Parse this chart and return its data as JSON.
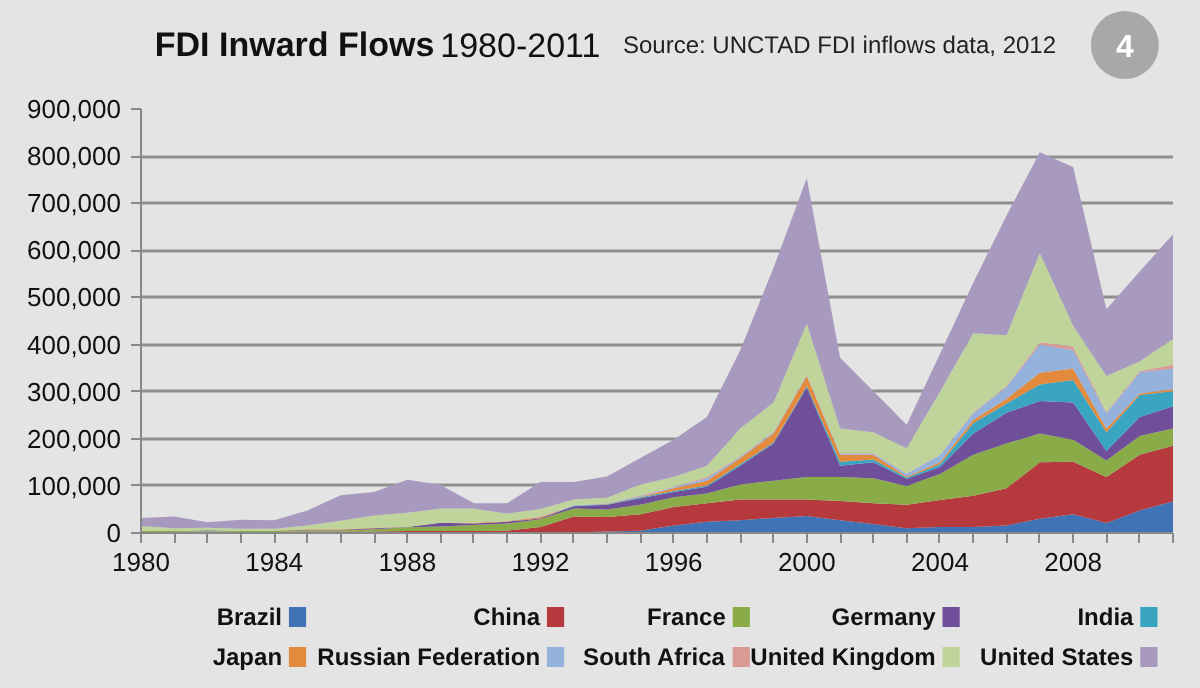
{
  "chart_data": {
    "type": "area",
    "stacked": true,
    "title": "FDI Inward Flows",
    "subtitle": "1980-2011",
    "annotations": [
      "Source: UNCTAD FDI inflows data, 2012",
      "4"
    ],
    "x": [
      1980,
      1981,
      1982,
      1983,
      1984,
      1985,
      1986,
      1987,
      1988,
      1989,
      1990,
      1991,
      1992,
      1993,
      1994,
      1995,
      1996,
      1997,
      1998,
      1999,
      2000,
      2001,
      2002,
      2003,
      2004,
      2005,
      2006,
      2007,
      2008,
      2009,
      2010,
      2011
    ],
    "xlim": [
      1980,
      2011
    ],
    "xticks": [
      1980,
      {
        "value": 1981,
        "label": null
      },
      {
        "value": 1982,
        "label": null
      },
      {
        "value": 1983,
        "label": null
      },
      1984,
      {
        "value": 1985,
        "label": null
      },
      {
        "value": 1986,
        "label": null
      },
      {
        "value": 1987,
        "label": null
      },
      1988,
      {
        "value": 1989,
        "label": null
      },
      {
        "value": 1990,
        "label": null
      },
      {
        "value": 1991,
        "label": null
      },
      1992,
      {
        "value": 1993,
        "label": null
      },
      {
        "value": 1994,
        "label": null
      },
      {
        "value": 1995,
        "label": null
      },
      1996,
      {
        "value": 1997,
        "label": null
      },
      {
        "value": 1998,
        "label": null
      },
      {
        "value": 1999,
        "label": null
      },
      2000,
      {
        "value": 2001,
        "label": null
      },
      {
        "value": 2002,
        "label": null
      },
      {
        "value": 2003,
        "label": null
      },
      2004,
      {
        "value": 2005,
        "label": null
      },
      {
        "value": 2006,
        "label": null
      },
      {
        "value": 2007,
        "label": null
      },
      2008,
      {
        "value": 2009,
        "label": null
      },
      {
        "value": 2010,
        "label": null
      },
      {
        "value": 2011,
        "label": null
      }
    ],
    "ylim": [
      0,
      900000
    ],
    "yticks": [
      {
        "value": 0,
        "label": "0"
      },
      {
        "value": 100000,
        "label": "100,000"
      },
      {
        "value": 200000,
        "label": "200,000"
      },
      {
        "value": 300000,
        "label": "300,000"
      },
      {
        "value": 400000,
        "label": "400,000"
      },
      {
        "value": 500000,
        "label": "500,000"
      },
      {
        "value": 600000,
        "label": "600,000"
      },
      {
        "value": 700000,
        "label": "700,000"
      },
      {
        "value": 800000,
        "label": "800,000"
      },
      {
        "value": 900000,
        "label": "900,000"
      }
    ],
    "grid": "y",
    "legend": "bottom",
    "series": [
      {
        "name": "Brazil",
        "color": "#3f73b5",
        "values": [
          2000,
          2000,
          3000,
          1000,
          1000,
          1000,
          1000,
          1000,
          1000,
          1000,
          1000,
          1000,
          2000,
          1000,
          3000,
          5000,
          16000,
          24000,
          27000,
          32000,
          36000,
          27000,
          19000,
          10000,
          13000,
          13000,
          16000,
          30000,
          40000,
          21000,
          48000,
          67000
        ]
      },
      {
        "name": "China",
        "color": "#b5393d",
        "values": [
          0,
          0,
          0,
          1000,
          1000,
          2000,
          2000,
          2000,
          3000,
          3000,
          3000,
          4000,
          11000,
          34000,
          31000,
          35000,
          39000,
          39000,
          44000,
          39000,
          35000,
          41000,
          44000,
          50000,
          57000,
          66000,
          79000,
          120000,
          111000,
          98000,
          118000,
          118000
        ]
      },
      {
        "name": "France",
        "color": "#8aac48",
        "values": [
          3000,
          2000,
          2000,
          2000,
          2000,
          3000,
          3000,
          5000,
          8000,
          10000,
          13000,
          15000,
          16000,
          17000,
          16000,
          20000,
          21000,
          21000,
          32000,
          40000,
          48000,
          51000,
          53000,
          40000,
          55000,
          87000,
          95000,
          61000,
          47000,
          35000,
          40000,
          37000
        ]
      },
      {
        "name": "Germany",
        "color": "#6f4f9a",
        "values": [
          0,
          0,
          1000,
          0,
          1000,
          1000,
          1000,
          2000,
          1000,
          8000,
          3000,
          4000,
          2000,
          5000,
          10000,
          14000,
          11000,
          14000,
          40000,
          79000,
          190000,
          24000,
          34000,
          15000,
          15000,
          45000,
          65000,
          69000,
          79000,
          20000,
          40000,
          47000
        ]
      },
      {
        "name": "India",
        "color": "#3aa5c0",
        "values": [
          0,
          0,
          0,
          0,
          0,
          0,
          0,
          0,
          0,
          0,
          0,
          0,
          0,
          1000,
          1000,
          2000,
          2000,
          3000,
          3000,
          2000,
          3000,
          8000,
          6000,
          3000,
          6000,
          22000,
          20000,
          35000,
          48000,
          40000,
          47000,
          32000
        ]
      },
      {
        "name": "Japan",
        "color": "#e48a3c",
        "values": [
          0,
          0,
          0,
          0,
          0,
          1000,
          1000,
          1000,
          0,
          0,
          2000,
          1000,
          3000,
          0,
          1000,
          1000,
          6000,
          10000,
          13000,
          19000,
          21000,
          15000,
          10000,
          2000,
          4000,
          7000,
          10000,
          25000,
          24000,
          8000,
          3000,
          4000
        ]
      },
      {
        "name": "Russian Federation",
        "color": "#94b2dc",
        "values": [
          0,
          0,
          0,
          0,
          0,
          0,
          0,
          0,
          0,
          0,
          0,
          0,
          1000,
          1000,
          1000,
          2000,
          2000,
          5000,
          3000,
          3000,
          2000,
          3000,
          3000,
          6000,
          15000,
          14000,
          25000,
          60000,
          39000,
          32000,
          45000,
          44000
        ]
      },
      {
        "name": "South Africa",
        "color": "#d99a95",
        "values": [
          0,
          0,
          0,
          0,
          0,
          0,
          0,
          0,
          0,
          0,
          0,
          0,
          0,
          0,
          0,
          1000,
          1000,
          3000,
          1000,
          1000,
          1000,
          1000,
          1000,
          1000,
          1000,
          2000,
          2000,
          5000,
          8000,
          3000,
          3000,
          8000
        ]
      },
      {
        "name": "United Kingdom",
        "color": "#bfd49a",
        "values": [
          10000,
          6000,
          5000,
          5000,
          4000,
          8000,
          18000,
          26000,
          30000,
          30000,
          30000,
          16000,
          16000,
          12000,
          12000,
          23000,
          21000,
          24000,
          59000,
          62000,
          108000,
          52000,
          44000,
          53000,
          134000,
          168000,
          108000,
          189000,
          44000,
          76000,
          20000,
          55000
        ]
      },
      {
        "name": "United States",
        "color": "#a899bf",
        "values": [
          17000,
          25000,
          12000,
          19000,
          18000,
          32000,
          54000,
          50000,
          70000,
          50000,
          11000,
          22000,
          57000,
          37000,
          45000,
          56000,
          79000,
          103000,
          166000,
          286000,
          309000,
          150000,
          87000,
          50000,
          80000,
          107000,
          254000,
          214000,
          337000,
          142000,
          191000,
          222000
        ]
      }
    ]
  }
}
